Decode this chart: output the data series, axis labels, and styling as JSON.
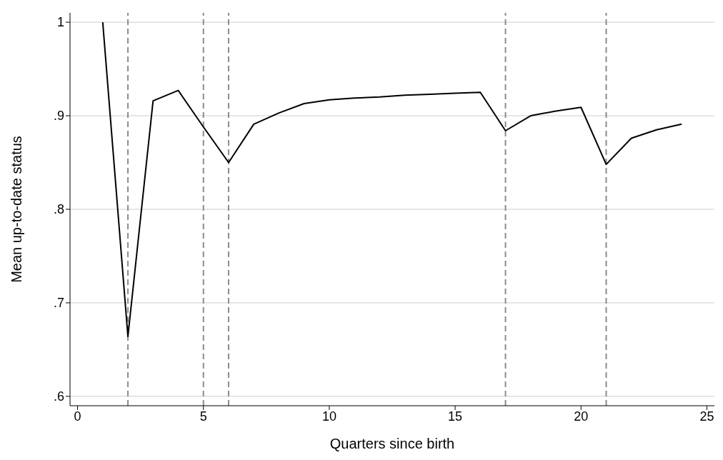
{
  "chart_data": {
    "type": "line",
    "xlabel": "Quarters since birth",
    "ylabel": "Mean up-to-date status",
    "x": [
      1,
      2,
      3,
      4,
      5,
      6,
      7,
      8,
      9,
      10,
      11,
      12,
      13,
      14,
      15,
      16,
      17,
      18,
      19,
      20,
      21,
      22,
      23,
      24
    ],
    "series": [
      {
        "color": "#000000",
        "values": [
          1.0,
          0.664,
          0.916,
          0.927,
          0.888,
          0.85,
          0.891,
          0.903,
          0.913,
          0.917,
          0.919,
          0.92,
          0.922,
          0.923,
          0.924,
          0.925,
          0.884,
          0.9,
          0.905,
          0.909,
          0.848,
          0.876,
          0.885,
          0.891
        ]
      }
    ],
    "xlim": [
      -0.3,
      25.3
    ],
    "xticks": [
      0,
      5,
      10,
      15,
      20,
      25
    ],
    "ylim": [
      0.59,
      1.01
    ],
    "yticks": [
      {
        "value": 0.6,
        "label": ".6"
      },
      {
        "value": 0.7,
        "label": ".7"
      },
      {
        "value": 0.8,
        "label": ".8"
      },
      {
        "value": 0.9,
        "label": ".9"
      },
      {
        "value": 1,
        "label": "1"
      }
    ],
    "grid": "y",
    "legend": false,
    "marker": "none",
    "line_style": "solid",
    "ref_lines": [
      {
        "axis": "x",
        "value": 2,
        "color": "#8c8c8c",
        "line_style": "dashed"
      },
      {
        "axis": "x",
        "value": 5,
        "color": "#8c8c8c",
        "line_style": "dashed"
      },
      {
        "axis": "x",
        "value": 6,
        "color": "#8c8c8c",
        "line_style": "dashed"
      },
      {
        "axis": "x",
        "value": 17,
        "color": "#8c8c8c",
        "line_style": "dashed"
      },
      {
        "axis": "x",
        "value": 21,
        "color": "#8c8c8c",
        "line_style": "dashed"
      }
    ]
  }
}
